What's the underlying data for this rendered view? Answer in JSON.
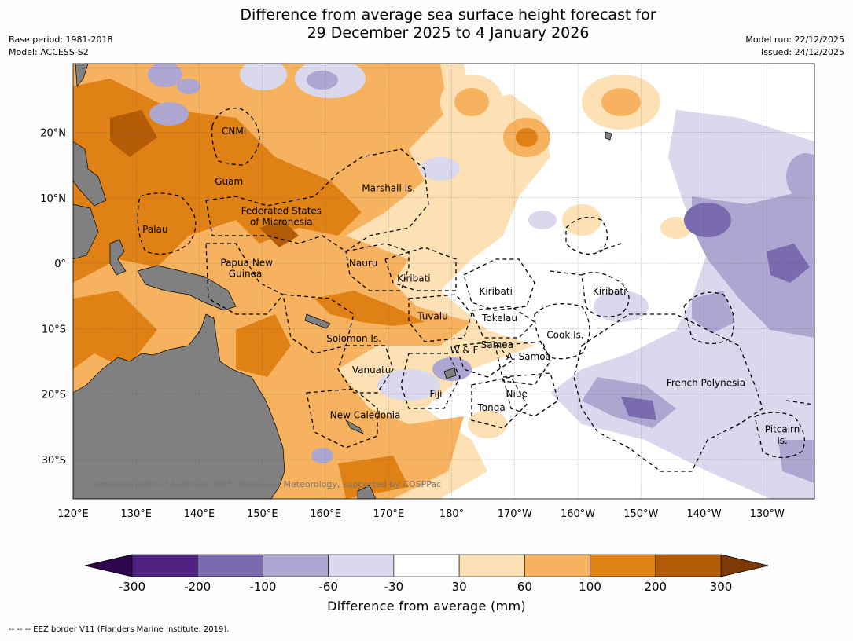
{
  "title": {
    "line1": "Difference from average sea surface height forecast for",
    "line2": "29 December 2025 to 4 January 2026"
  },
  "meta_left": {
    "base_period": "Base period: 1981-2018",
    "model": "Model: ACCESS-S2"
  },
  "meta_right": {
    "model_run": "Model run: 22/12/2025",
    "issued": "Issued: 24/12/2025"
  },
  "map": {
    "lon_range": [
      120,
      237.5
    ],
    "lat_range": [
      -36,
      30.5
    ],
    "lon_ticks": [
      {
        "lon": 120,
        "label": "120°E"
      },
      {
        "lon": 130,
        "label": "130°E"
      },
      {
        "lon": 140,
        "label": "140°E"
      },
      {
        "lon": 150,
        "label": "150°E"
      },
      {
        "lon": 160,
        "label": "160°E"
      },
      {
        "lon": 170,
        "label": "170°E"
      },
      {
        "lon": 180,
        "label": "180°"
      },
      {
        "lon": 190,
        "label": "170°W"
      },
      {
        "lon": 200,
        "label": "160°W"
      },
      {
        "lon": 210,
        "label": "150°W"
      },
      {
        "lon": 220,
        "label": "140°W"
      },
      {
        "lon": 230,
        "label": "130°W"
      }
    ],
    "lat_ticks": [
      {
        "lat": 20,
        "label": "20°N"
      },
      {
        "lat": 10,
        "label": "10°N"
      },
      {
        "lat": 0,
        "label": "0°"
      },
      {
        "lat": -10,
        "label": "10°S"
      },
      {
        "lat": -20,
        "label": "20°S"
      },
      {
        "lat": -30,
        "label": "30°S"
      }
    ],
    "copyright": "© Commonwealth of Australia 2025, Bureau of Meteorology, supported by COSPPac",
    "regions": [
      {
        "name": "CNMI",
        "lon": 145.5,
        "lat": 20.2
      },
      {
        "name": "Guam",
        "lon": 144.7,
        "lat": 12.5
      },
      {
        "name": "Marshall Is.",
        "lon": 170,
        "lat": 11.5
      },
      {
        "name": "Federated States",
        "lon": 153,
        "lat": 8
      },
      {
        "name": "of Micronesia",
        "lon": 153,
        "lat": 6.3
      },
      {
        "name": "Palau",
        "lon": 133,
        "lat": 5.2
      },
      {
        "name": "Papua New",
        "lon": 147.5,
        "lat": 0.1
      },
      {
        "name": "Guinea",
        "lon": 147.3,
        "lat": -1.6
      },
      {
        "name": "Nauru",
        "lon": 166,
        "lat": 0
      },
      {
        "name": "Kiribati",
        "lon": 174,
        "lat": -2.3
      },
      {
        "name": "Kiribati",
        "lon": 187,
        "lat": -4.3
      },
      {
        "name": "Kiribati",
        "lon": 205,
        "lat": -4.3
      },
      {
        "name": "Tuvalu",
        "lon": 177,
        "lat": -8.1
      },
      {
        "name": "Tokelau",
        "lon": 187.6,
        "lat": -8.4
      },
      {
        "name": "Cook Is.",
        "lon": 198,
        "lat": -11
      },
      {
        "name": "Solomon Is.",
        "lon": 164.5,
        "lat": -11.5
      },
      {
        "name": "Samoa",
        "lon": 187.2,
        "lat": -12.5
      },
      {
        "name": "W & F",
        "lon": 182,
        "lat": -13.3
      },
      {
        "name": "A. Samoa",
        "lon": 192.2,
        "lat": -14.3
      },
      {
        "name": "Vanuatu",
        "lon": 167.3,
        "lat": -16.3
      },
      {
        "name": "French Polynesia",
        "lon": 220.3,
        "lat": -18.3
      },
      {
        "name": "Fiji",
        "lon": 177.5,
        "lat": -20
      },
      {
        "name": "Niue",
        "lon": 190.3,
        "lat": -20
      },
      {
        "name": "Tonga",
        "lon": 186.3,
        "lat": -22.1
      },
      {
        "name": "New Caledonia",
        "lon": 166.3,
        "lat": -23.2
      },
      {
        "name": "Pitcairn",
        "lon": 232.4,
        "lat": -25.4
      },
      {
        "name": "Is.",
        "lon": 232.4,
        "lat": -27.1
      }
    ]
  },
  "colorbar": {
    "labels": [
      "-300",
      "-200",
      "-100",
      "-60",
      "-30",
      "30",
      "60",
      "100",
      "200",
      "300"
    ],
    "colors": [
      "#4f2181",
      "#7a6aae",
      "#ada6d1",
      "#d9d8ec",
      "#ffffff",
      "#fde0b4",
      "#f7b25f",
      "#e08115",
      "#b45b07"
    ],
    "low_extend_color": "#2e0650",
    "high_extend_color": "#7d3a05",
    "title": "Difference from average (mm)"
  },
  "land_color": "#808080",
  "footer": "--  --  -- EEZ border V11 (Flanders Marine Institute, 2019)."
}
